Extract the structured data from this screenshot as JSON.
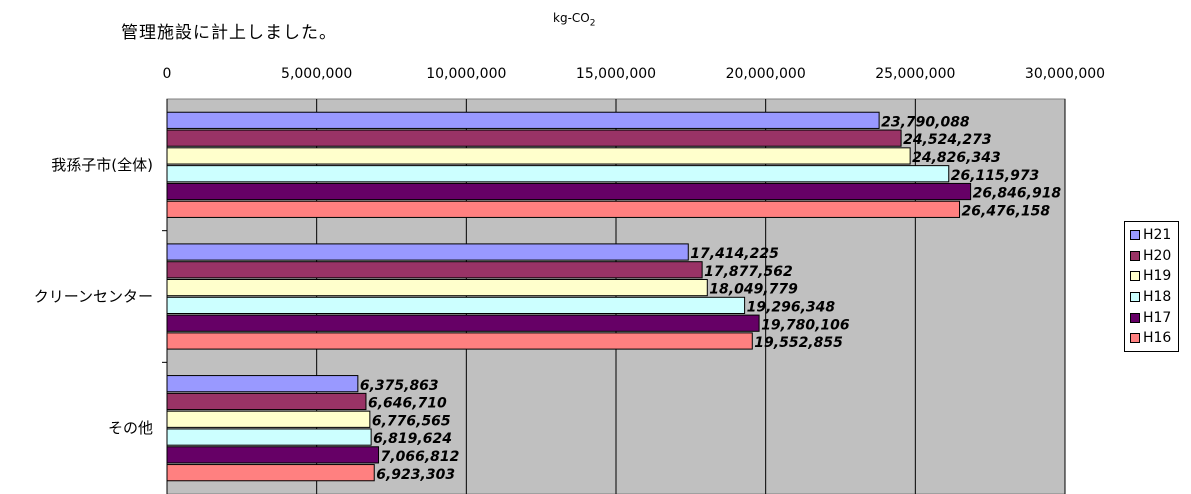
{
  "header": {
    "body_text": "管理施設に計上しました。",
    "unit_main": "kg-CO",
    "unit_sub": "2"
  },
  "chart_data": {
    "type": "bar",
    "orientation": "horizontal",
    "title": "",
    "xlabel": "",
    "ylabel": "",
    "xlim": [
      0,
      30000000
    ],
    "x_ticks": [
      "0",
      "5,000,000",
      "10,000,000",
      "15,000,000",
      "20,000,000",
      "25,000,000",
      "30,000,000"
    ],
    "grid": true,
    "legend_position": "right",
    "categories": [
      "我孫子市(全体)",
      "クリーンセンター",
      "その他"
    ],
    "series": [
      {
        "name": "H21",
        "color": "#9999ff",
        "values": [
          23790088,
          17414225,
          6375863
        ],
        "labels": [
          "23,790,088",
          "17,414,225",
          "6,375,863"
        ]
      },
      {
        "name": "H20",
        "color": "#993366",
        "values": [
          24524273,
          17877562,
          6646710
        ],
        "labels": [
          "24,524,273",
          "17,877,562",
          "6,646,710"
        ]
      },
      {
        "name": "H19",
        "color": "#ffffcc",
        "values": [
          24826343,
          18049779,
          6776565
        ],
        "labels": [
          "24,826,343",
          "18,049,779",
          "6,776,565"
        ]
      },
      {
        "name": "H18",
        "color": "#ccffff",
        "values": [
          26115973,
          19296348,
          6819624
        ],
        "labels": [
          "26,115,973",
          "19,296,348",
          "6,819,624"
        ]
      },
      {
        "name": "H17",
        "color": "#660066",
        "values": [
          26846918,
          19780106,
          7066812
        ],
        "labels": [
          "26,846,918",
          "19,780,106",
          "7,066,812"
        ]
      },
      {
        "name": "H16",
        "color": "#ff8080",
        "values": [
          26476158,
          19552855,
          6923303
        ],
        "labels": [
          "26,476,158",
          "19,552,855",
          "6,923,303"
        ]
      }
    ],
    "plot_background": "#c0c0c0"
  }
}
